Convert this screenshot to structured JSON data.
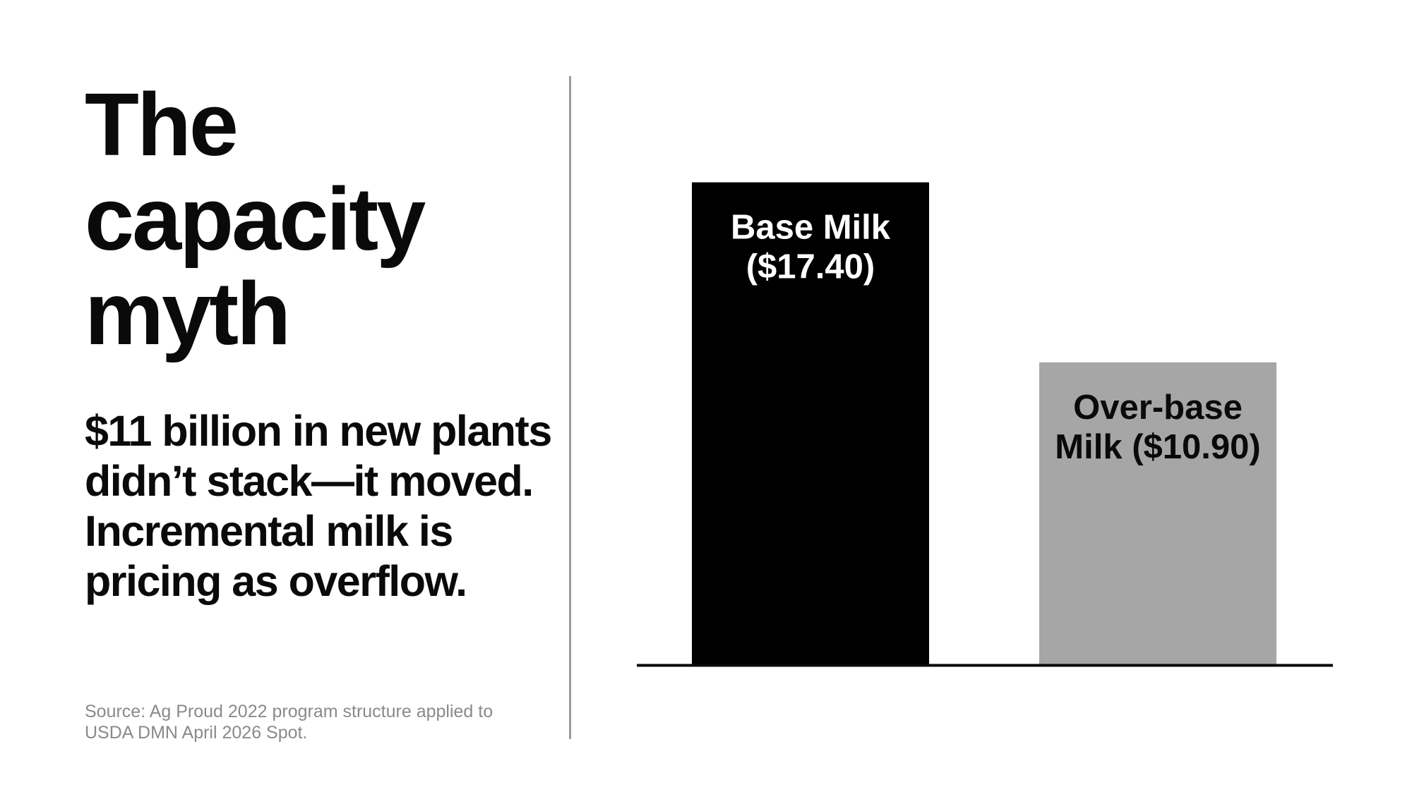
{
  "headline": {
    "title_lines": [
      "The",
      "capacity",
      "myth"
    ],
    "subtitle_lines": [
      "$11 billion in new plants",
      "didn’t stack—it moved.",
      "Incremental milk is",
      "pricing as overflow."
    ],
    "source_lines": [
      "Source: Ag Proud 2022 program structure applied to",
      "USDA DMN April 2026 Spot."
    ]
  },
  "chart_data": {
    "type": "bar",
    "categories": [
      "Base Milk",
      "Over-base Milk"
    ],
    "values": [
      17.4,
      10.9
    ],
    "data_labels": [
      [
        "Base Milk",
        "($17.40)"
      ],
      [
        "Over-base",
        "Milk ($10.90)"
      ]
    ],
    "title": "",
    "xlabel": "",
    "ylabel": "",
    "ylim": [
      0,
      19.4
    ],
    "grid": false,
    "colors": [
      "#000000",
      "#a6a6a6"
    ],
    "label_colors": [
      "#ffffff",
      "#0a0a0a"
    ],
    "baseline_color": "#0a0a0a"
  }
}
